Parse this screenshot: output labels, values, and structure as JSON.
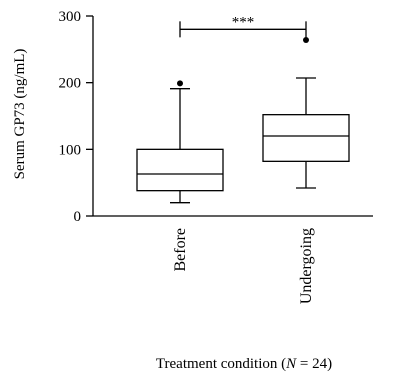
{
  "chart_data": {
    "type": "box",
    "ylabel": "Serum GP73 (ng/mL)",
    "xlabel": "Treatment condition (N = 24)",
    "xlabel_prefix": "Treatment condition (",
    "xlabel_italic": "N",
    "xlabel_suffix": " = 24)",
    "ylim": [
      0,
      300
    ],
    "yticks": [
      0,
      100,
      200,
      300
    ],
    "ytick_labels": [
      "0",
      "100",
      "200",
      "300"
    ],
    "categories": [
      "Before",
      "Undergoing"
    ],
    "boxes": [
      {
        "category": "Before",
        "whisker_low": 20,
        "q1": 38,
        "median": 63,
        "q3": 100,
        "whisker_high": 191,
        "outliers": [
          199
        ]
      },
      {
        "category": "Undergoing",
        "whisker_low": 42,
        "q1": 82,
        "median": 120,
        "q3": 152,
        "whisker_high": 207,
        "outliers": [
          264
        ]
      }
    ],
    "significance": {
      "from": "Before",
      "to": "Undergoing",
      "y": 280,
      "label": "***"
    },
    "grid": false,
    "legend": "none"
  }
}
